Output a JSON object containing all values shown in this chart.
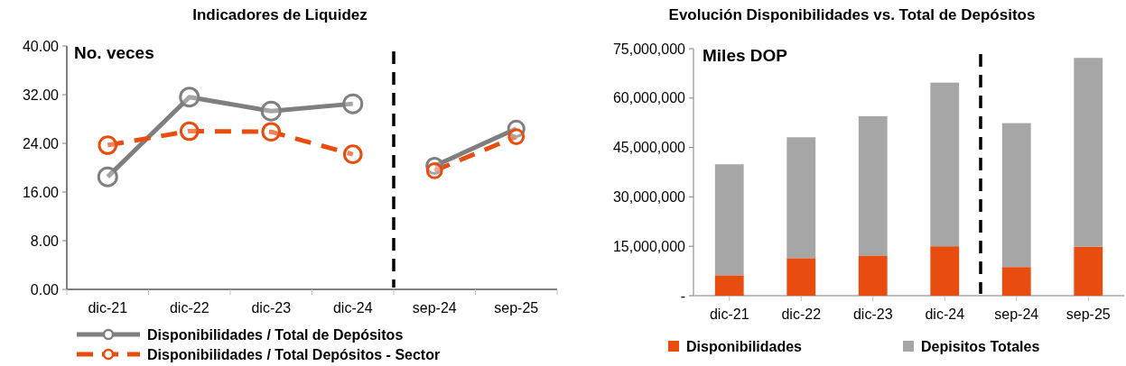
{
  "chart_data": [
    {
      "type": "line",
      "title": "Indicadores de Liquidez",
      "ylabel": "No. veces",
      "categories": [
        "dic-21",
        "dic-22",
        "dic-23",
        "dic-24",
        "sep-24",
        "sep-25"
      ],
      "series": [
        {
          "name": "Disponibilidades / Total de Depósitos",
          "color": "#7f7f7f",
          "line_style": "solid",
          "values": [
            18.5,
            31.6,
            29.3,
            30.5,
            null,
            null
          ]
        },
        {
          "name": "Disponibilidades / Total Depósitos - Sector",
          "color": "#e84c0e",
          "line_style": "dashed",
          "values": [
            23.7,
            26.0,
            25.9,
            22.2,
            null,
            null
          ]
        },
        {
          "color": "#7f7f7f",
          "line_style": "solid",
          "values": [
            null,
            null,
            null,
            null,
            20.3,
            26.4
          ]
        },
        {
          "color": "#e84c0e",
          "line_style": "dashed",
          "values": [
            null,
            null,
            null,
            null,
            19.5,
            25.1
          ]
        }
      ],
      "ylim": [
        0,
        40
      ],
      "yticks": [
        {
          "value": 0,
          "label": "0.00"
        },
        {
          "value": 8,
          "label": "8.00"
        },
        {
          "value": 16,
          "label": "16.00"
        },
        {
          "value": 24,
          "label": "24.00"
        },
        {
          "value": 32,
          "label": "32.00"
        },
        {
          "value": 40,
          "label": "40.00"
        }
      ],
      "marker": "circle",
      "grid": false,
      "legend": "bottom"
    },
    {
      "type": "bar",
      "title": "Evolución Disponibilidades vs. Total de Depósitos",
      "ylabel": "Miles DOP",
      "stacked": true,
      "categories": [
        "dic-21",
        "dic-22",
        "dic-23",
        "dic-24",
        "sep-24",
        "sep-25"
      ],
      "series": [
        {
          "name": "Disponibilidades",
          "color": "#e84c0e",
          "values": [
            6200000,
            11400000,
            12200000,
            15000000,
            8700000,
            14900000
          ]
        },
        {
          "name": "Depisitos Totales",
          "color": "#a6a6a6",
          "values": [
            33700000,
            36700000,
            42300000,
            49700000,
            43700000,
            57300000
          ]
        }
      ],
      "ylim": [
        0,
        75000000
      ],
      "yticks": [
        {
          "value": 0,
          "label": "-"
        },
        {
          "value": 15000000,
          "label": "15,000,000"
        },
        {
          "value": 30000000,
          "label": "30,000,000"
        },
        {
          "value": 45000000,
          "label": "45,000,000"
        },
        {
          "value": 60000000,
          "label": "60,000,000"
        },
        {
          "value": 75000000,
          "label": "75,000,000"
        }
      ],
      "grid": false,
      "legend": "bottom"
    }
  ]
}
